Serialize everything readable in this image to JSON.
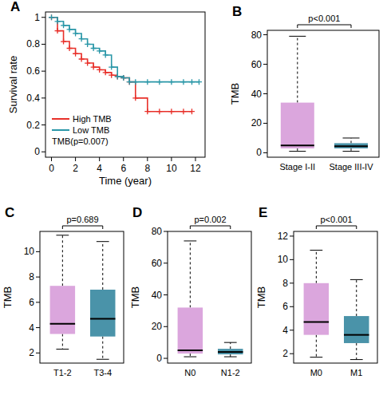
{
  "chart_data": [
    {
      "type": "line",
      "title": "A",
      "x_label": "Time (year)",
      "y_label": "Survival rate",
      "annotation": "TMB(p=0.007)",
      "legend": "bottom-left",
      "grid": false,
      "line_style": "step",
      "marker": "plus",
      "x": [
        0,
        0.5,
        1,
        1.5,
        2,
        2.5,
        3,
        3.5,
        4,
        4.5,
        5,
        5.5,
        6,
        6.5,
        7,
        8,
        9,
        10,
        11,
        11.7,
        12.3
      ],
      "series": [
        {
          "name": "High TMB",
          "color": "#e8302a",
          "values": [
            1,
            0.9,
            0.82,
            0.77,
            0.73,
            0.69,
            0.66,
            0.63,
            0.61,
            0.59,
            0.57,
            0.56,
            0.55,
            0.52,
            0.4,
            0.3,
            0.3,
            0.3,
            0.3,
            0.3,
            null
          ]
        },
        {
          "name": "Low TMB",
          "color": "#2a97a8",
          "values": [
            1,
            0.97,
            0.94,
            0.91,
            0.88,
            0.84,
            0.8,
            0.77,
            0.75,
            0.72,
            0.63,
            0.56,
            0.55,
            0.52,
            0.52,
            0.52,
            0.52,
            0.52,
            0.52,
            0.52,
            0.52
          ]
        }
      ],
      "xlim": [
        -0.5,
        12.8
      ],
      "xticks": [
        0,
        2,
        4,
        6,
        8,
        10,
        12
      ],
      "ylim": [
        -0.04,
        1.04
      ],
      "yticks": [
        0,
        0.2,
        0.4,
        0.6,
        0.8,
        1
      ]
    },
    {
      "type": "box",
      "title": "B",
      "y_label": "TMB",
      "annotation": "p<0.001",
      "grid": false,
      "categories": [
        "Stage I-II",
        "Stage III-IV"
      ],
      "colors": [
        "#dba6dd",
        "#4a93a9"
      ],
      "whisker_low": [
        1,
        1
      ],
      "q1": [
        3,
        3
      ],
      "median": [
        5,
        4.5
      ],
      "q3": [
        34,
        6.5
      ],
      "whisker_high": [
        79,
        10
      ],
      "ylim": [
        -3,
        83
      ],
      "yticks": [
        0,
        20,
        40,
        60,
        80
      ]
    },
    {
      "type": "box",
      "title": "C",
      "y_label": "TMB",
      "annotation": "p=0.689",
      "grid": false,
      "categories": [
        "T1-2",
        "T3-4"
      ],
      "colors": [
        "#dba6dd",
        "#4a93a9"
      ],
      "whisker_low": [
        2.3,
        1.5
      ],
      "q1": [
        3.5,
        3.3
      ],
      "median": [
        4.3,
        4.7
      ],
      "q3": [
        7.3,
        7
      ],
      "whisker_high": [
        11.3,
        10.8
      ],
      "ylim": [
        1.2,
        11.6
      ],
      "yticks": [
        2,
        4,
        6,
        8,
        10
      ]
    },
    {
      "type": "box",
      "title": "D",
      "y_label": "TMB",
      "annotation": "p=0.002",
      "grid": false,
      "categories": [
        "N0",
        "N1-2"
      ],
      "colors": [
        "#dba6dd",
        "#4a93a9"
      ],
      "whisker_low": [
        1,
        1
      ],
      "q1": [
        3,
        2.5
      ],
      "median": [
        5,
        4
      ],
      "q3": [
        32,
        6
      ],
      "whisker_high": [
        74,
        10
      ],
      "ylim": [
        -3,
        80
      ],
      "yticks": [
        0,
        20,
        40,
        60,
        80
      ]
    },
    {
      "type": "box",
      "title": "E",
      "y_label": "TMB",
      "annotation": "p<0.001",
      "grid": false,
      "categories": [
        "M0",
        "M1"
      ],
      "colors": [
        "#dba6dd",
        "#4a93a9"
      ],
      "whisker_low": [
        1.7,
        1.5
      ],
      "q1": [
        3.6,
        2.9
      ],
      "median": [
        4.7,
        3.6
      ],
      "q3": [
        8,
        5.2
      ],
      "whisker_high": [
        10.8,
        8.3
      ],
      "ylim": [
        1.2,
        12.4
      ],
      "yticks": [
        2,
        4,
        6,
        8,
        10,
        12
      ]
    }
  ]
}
